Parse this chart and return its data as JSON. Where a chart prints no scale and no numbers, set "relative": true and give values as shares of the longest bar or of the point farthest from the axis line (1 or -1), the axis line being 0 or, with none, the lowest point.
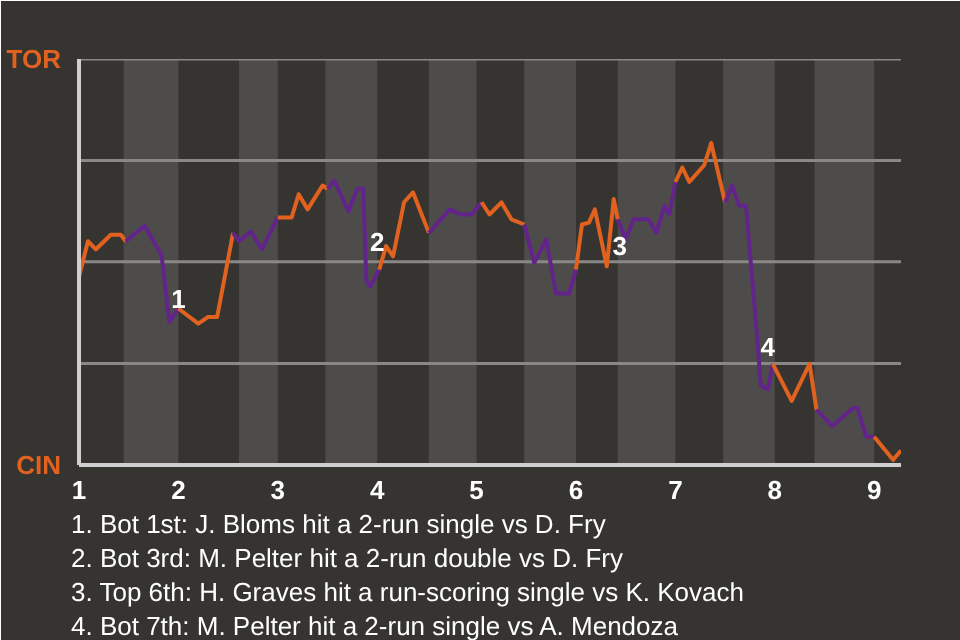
{
  "chart_data": {
    "type": "line",
    "relative": true,
    "xlim": [
      1,
      9.27
    ],
    "xticks": [
      1,
      2,
      3,
      4,
      5,
      6,
      7,
      8,
      9
    ],
    "tick_labels": "x",
    "ref_lines": [
      {
        "axis": "y",
        "value": 0.315,
        "label": null,
        "color": "#8a8886"
      },
      {
        "axis": "y",
        "value": 0.631,
        "label": null,
        "color": "#8a8886"
      },
      {
        "axis": "y",
        "value": 0.946,
        "label": null,
        "color": "#8a8886"
      },
      {
        "axis": "y",
        "value": 1.261,
        "label": null,
        "color": "#8a8886"
      }
    ],
    "bands": [
      {
        "axis": "x",
        "from": 1.45,
        "to": 2,
        "color": "#4e4c4a"
      },
      {
        "axis": "x",
        "from": 2.61,
        "to": 3,
        "color": "#4e4c4a"
      },
      {
        "axis": "x",
        "from": 3.48,
        "to": 4,
        "color": "#4e4c4a"
      },
      {
        "axis": "x",
        "from": 4.52,
        "to": 5,
        "color": "#4e4c4a"
      },
      {
        "axis": "x",
        "from": 5.48,
        "to": 6,
        "color": "#4e4c4a"
      },
      {
        "axis": "x",
        "from": 6.42,
        "to": 7,
        "color": "#4e4c4a"
      },
      {
        "axis": "x",
        "from": 7.48,
        "to": 8,
        "color": "#4e4c4a"
      },
      {
        "axis": "x",
        "from": 8.4,
        "to": 9,
        "color": "#4e4c4a"
      }
    ],
    "series": [
      {
        "color": "#e0621e",
        "x": [
          1,
          1.09,
          1.17,
          1.32,
          1.42,
          1.47
        ],
        "values": [
          0.585,
          0.695,
          0.67,
          0.715,
          0.715,
          0.695
        ]
      },
      {
        "color": "#62238a",
        "x": [
          1.47,
          1.66,
          1.83,
          1.91,
          2
        ],
        "values": [
          0.695,
          0.743,
          0.652,
          0.444,
          0.486
        ]
      },
      {
        "color": "#e0621e",
        "x": [
          2,
          2.2,
          2.3,
          2.39,
          2.55
        ],
        "values": [
          0.486,
          0.439,
          0.46,
          0.46,
          0.721
        ]
      },
      {
        "color": "#62238a",
        "x": [
          2.55,
          2.61,
          2.73,
          2.84,
          3
        ],
        "values": [
          0.721,
          0.695,
          0.725,
          0.67,
          0.769
        ]
      },
      {
        "color": "#e0621e",
        "x": [
          3,
          3.14,
          3.21,
          3.3,
          3.45,
          3.5
        ],
        "values": [
          0.769,
          0.769,
          0.841,
          0.794,
          0.868,
          0.858
        ]
      },
      {
        "color": "#62238a",
        "x": [
          3.5,
          3.57,
          3.71,
          3.8,
          3.86,
          3.89,
          3.93,
          4.02
        ],
        "values": [
          0.858,
          0.883,
          0.788,
          0.858,
          0.858,
          0.575,
          0.554,
          0.607
        ]
      },
      {
        "color": "#e0621e",
        "x": [
          4.02,
          4.09,
          4.16,
          4.27,
          4.36,
          4.52
        ],
        "values": [
          0.607,
          0.68,
          0.648,
          0.816,
          0.847,
          0.721
        ]
      },
      {
        "color": "#62238a",
        "x": [
          4.52,
          4.73,
          4.84,
          4.95,
          5.05
        ],
        "values": [
          0.721,
          0.794,
          0.778,
          0.778,
          0.816
        ]
      },
      {
        "color": "#e0621e",
        "x": [
          5.05,
          5.13,
          5.25,
          5.35,
          5.48
        ],
        "values": [
          0.816,
          0.778,
          0.816,
          0.763,
          0.747
        ]
      },
      {
        "color": "#62238a",
        "x": [
          5.48,
          5.58,
          5.7,
          5.8,
          5.93,
          6
        ],
        "values": [
          0.747,
          0.628,
          0.701,
          0.533,
          0.533,
          0.607
        ]
      },
      {
        "color": "#e0621e",
        "x": [
          6,
          6.06,
          6.13,
          6.19,
          6.31,
          6.38,
          6.42
        ],
        "values": [
          0.607,
          0.747,
          0.753,
          0.794,
          0.617,
          0.826,
          0.763
        ]
      },
      {
        "color": "#62238a",
        "x": [
          6.42,
          6.5,
          6.58,
          6.73,
          6.81,
          6.89,
          6.94,
          7
        ],
        "values": [
          0.763,
          0.701,
          0.763,
          0.763,
          0.721,
          0.805,
          0.778,
          0.879
        ]
      },
      {
        "color": "#e0621e",
        "x": [
          7,
          7.07,
          7.14,
          7.29,
          7.36,
          7.5
        ],
        "values": [
          0.879,
          0.924,
          0.879,
          0.931,
          1,
          0.816
        ]
      },
      {
        "color": "#62238a",
        "x": [
          7.5,
          7.57,
          7.64,
          7.71,
          7.82,
          7.86,
          7.93,
          7.98
        ],
        "values": [
          0.816,
          0.868,
          0.805,
          0.805,
          0.407,
          0.247,
          0.235,
          0.314
        ]
      },
      {
        "color": "#e0621e",
        "x": [
          7.98,
          8.17,
          8.35,
          8.42
        ],
        "values": [
          0.314,
          0.199,
          0.314,
          0.172
        ]
      },
      {
        "color": "#62238a",
        "x": [
          8.42,
          8.58,
          8.79,
          8.83,
          8.92,
          9
        ],
        "values": [
          0.172,
          0.121,
          0.178,
          0.178,
          0.088,
          0.088
        ]
      },
      {
        "color": "#e0621e",
        "x": [
          9,
          9.19,
          9.27
        ],
        "values": [
          0.088,
          0.016,
          0.045
        ]
      }
    ],
    "annotations": [
      "TOR",
      "CIN",
      {
        "text": "1",
        "x": 2,
        "y": 0.517
      },
      {
        "text": "2",
        "x": 4,
        "y": 0.694
      },
      {
        "text": "3",
        "x": 6.44,
        "y": 0.681
      },
      {
        "text": "4",
        "x": 7.93,
        "y": 0.366
      },
      "1. Bot 1st: J. Bloms hit a 2-run single vs D. Fry",
      "2. Bot 3rd: M. Pelter hit a 2-run double vs D. Fry",
      "3. Top 6th: H. Graves hit a run-scoring single vs K. Kovach",
      "4. Bot 7th: M. Pelter hit a 2-run single vs A. Mendoza"
    ]
  }
}
